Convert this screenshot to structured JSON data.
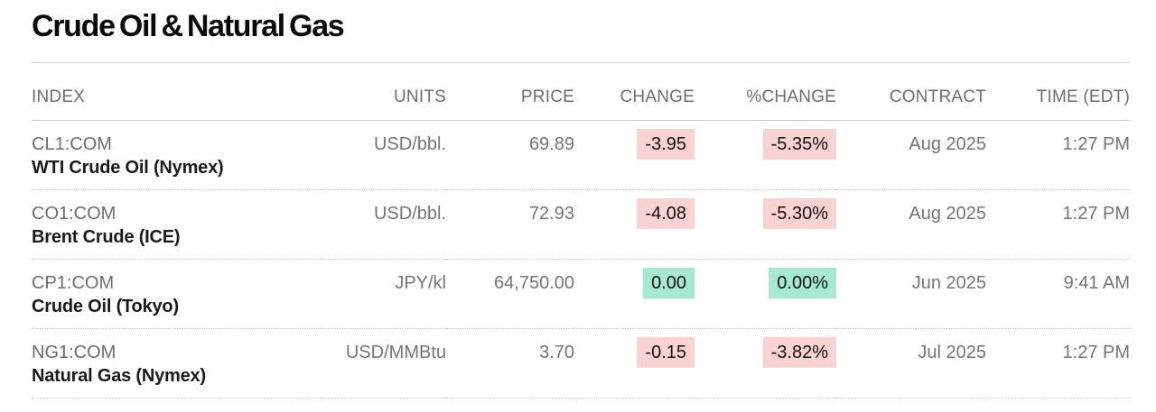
{
  "page": {
    "title": "Crude Oil & Natural Gas"
  },
  "table": {
    "columns": [
      "INDEX",
      "UNITS",
      "PRICE",
      "CHANGE",
      "%CHANGE",
      "CONTRACT",
      "TIME (EDT)"
    ],
    "rows": [
      {
        "ticker": "CL1:COM",
        "name": "WTI Crude Oil (Nymex)",
        "units": "USD/bbl.",
        "price": "69.89",
        "change": "-3.95",
        "pct_change": "-5.35%",
        "direction": "down",
        "contract": "Aug 2025",
        "time": "1:27 PM"
      },
      {
        "ticker": "CO1:COM",
        "name": "Brent Crude (ICE)",
        "units": "USD/bbl.",
        "price": "72.93",
        "change": "-4.08",
        "pct_change": "-5.30%",
        "direction": "down",
        "contract": "Aug 2025",
        "time": "1:27 PM"
      },
      {
        "ticker": "CP1:COM",
        "name": "Crude Oil (Tokyo)",
        "units": "JPY/kl",
        "price": "64,750.00",
        "change": "0.00",
        "pct_change": "0.00%",
        "direction": "flat",
        "contract": "Jun 2025",
        "time": "9:41 AM"
      },
      {
        "ticker": "NG1:COM",
        "name": "Natural Gas (Nymex)",
        "units": "USD/MMBtu",
        "price": "3.70",
        "change": "-0.15",
        "pct_change": "-3.82%",
        "direction": "down",
        "contract": "Jul 2025",
        "time": "1:27 PM"
      }
    ]
  },
  "colors": {
    "negative_highlight_bg": "#f9d2d2",
    "unchanged_highlight_bg": "#a5ead0",
    "title_text": "#0a0a0a",
    "muted_text": "#757575"
  }
}
